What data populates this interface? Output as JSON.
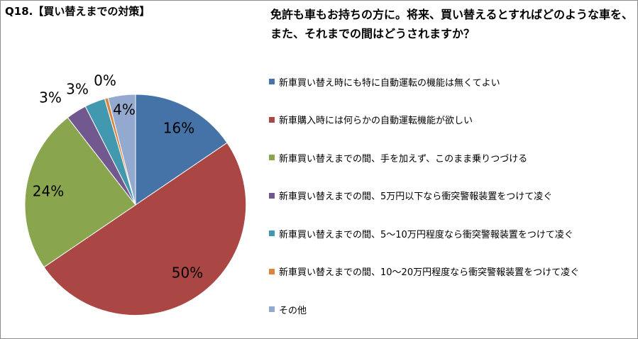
{
  "header": {
    "question": "Q18.【買い替えまでの対策】",
    "subtitle": "免許も車もお持ちの方に。将来、買い替えるとすればどのような車を、また、それまでの間はどうされますか？"
  },
  "chart_data": {
    "type": "pie",
    "unit": "%",
    "start_angle_deg": 0,
    "direction": "clockwise",
    "legend_position": "right",
    "slices": [
      {
        "label": "新車買い替え時にも特に自動運転の機能は無くてよい",
        "value": 15.5,
        "display": "16%",
        "color": "#4572A7"
      },
      {
        "label": "新車購入時には何らかの自動運転機能が欲しい",
        "value": 50.0,
        "display": "50%",
        "color": "#AA4643"
      },
      {
        "label": "新車買い替えまでの間、手を加えず、このまま乗りつづける",
        "value": 24.0,
        "display": "24%",
        "color": "#89A54E"
      },
      {
        "label": "新車買い替えまでの間、5万円以下なら衝突警報装置をつけて凌ぐ",
        "value": 3.0,
        "display": "3%",
        "color": "#71588F"
      },
      {
        "label": "新車買い替えまでの間、5～10万円程度なら衝突警報装置をつけて凌ぐ",
        "value": 3.0,
        "display": "3%",
        "color": "#4198AF"
      },
      {
        "label": "新車買い替えまでの間、10～20万円程度なら衝突警報装置をつけて凌ぐ",
        "value": 0.5,
        "display": "0%",
        "color": "#DB843D"
      },
      {
        "label": "その他",
        "value": 4.0,
        "display": "4%",
        "color": "#93A9CF"
      }
    ]
  }
}
